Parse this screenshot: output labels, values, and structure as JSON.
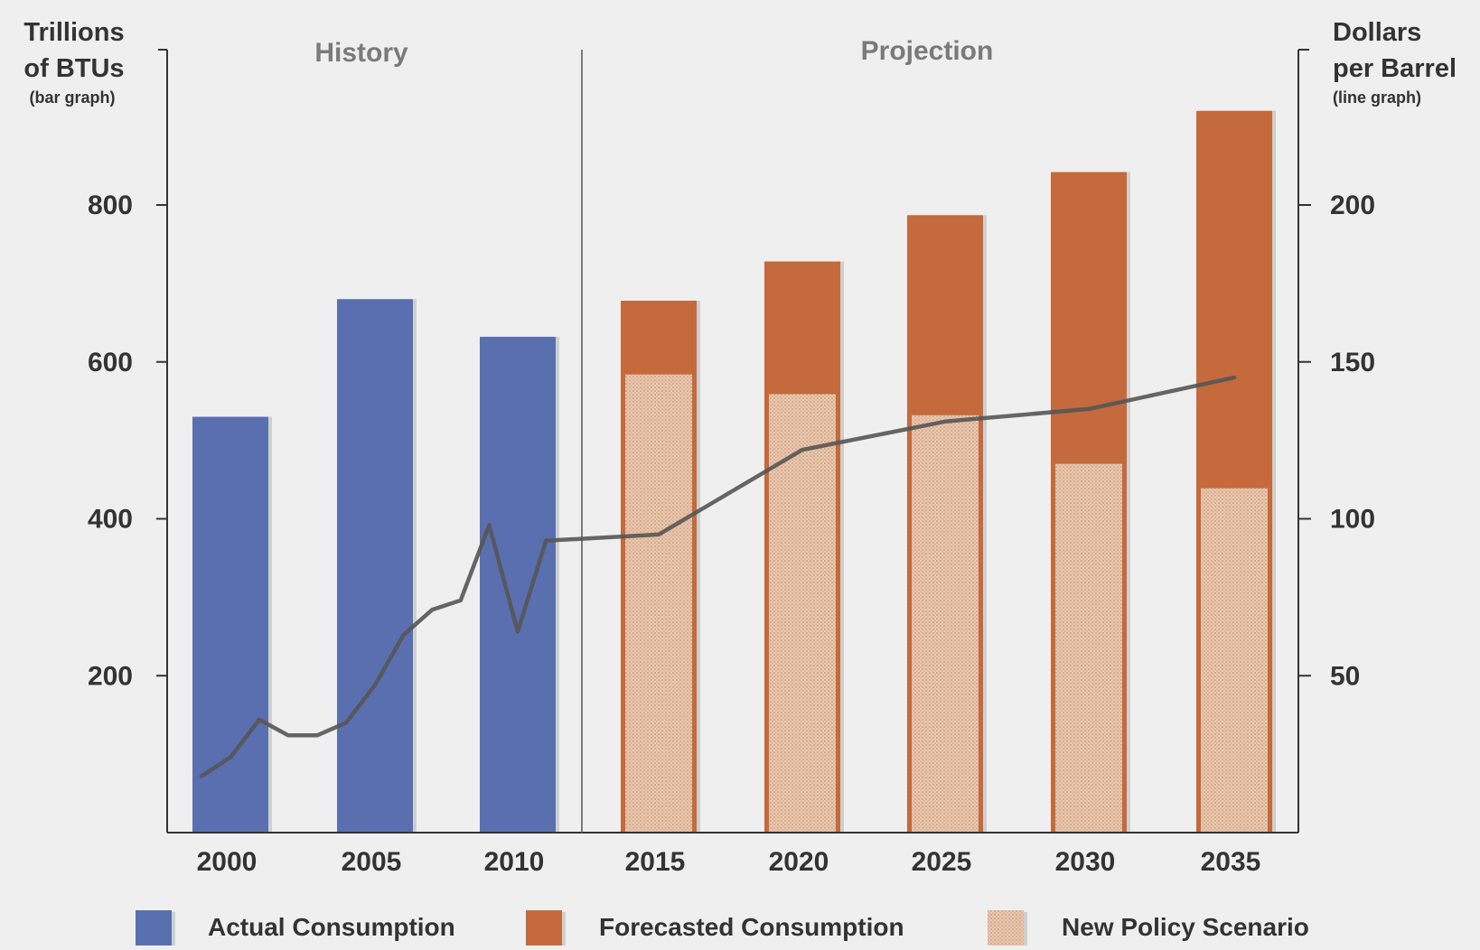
{
  "chart_data": {
    "type": "bar",
    "sections": {
      "history": "History",
      "projection": "Projection"
    },
    "left_axis": {
      "title_line1": "Trillions",
      "title_line2": "of BTUs",
      "title_note": "(bar graph)",
      "range": [
        0,
        1000
      ],
      "ticks": [
        "200",
        "400",
        "600",
        "800"
      ],
      "tick_values": [
        200,
        400,
        600,
        800
      ]
    },
    "right_axis": {
      "title_line1": "Dollars",
      "title_line2": "per Barrel",
      "title_note": "(line graph)",
      "range": [
        0,
        250
      ],
      "ticks": [
        "50",
        "100",
        "150",
        "200"
      ],
      "tick_values": [
        50,
        100,
        150,
        200
      ]
    },
    "categories": [
      "2000",
      "2005",
      "2010",
      "2015",
      "2020",
      "2025",
      "2030",
      "2035"
    ],
    "series": [
      {
        "name": "Actual Consumption",
        "color": "#5a6fb0",
        "values": [
          530,
          680,
          632,
          null,
          null,
          null,
          null,
          null
        ]
      },
      {
        "name": "Forecasted Consumption",
        "color": "#c46a3c",
        "values": [
          null,
          null,
          null,
          678,
          728,
          787,
          842,
          920
        ]
      },
      {
        "name": "New Policy Scenario",
        "color": "#e5c1a8",
        "pattern": "stipple",
        "values": [
          null,
          null,
          null,
          584,
          559,
          532,
          470,
          439
        ]
      }
    ],
    "price_line": {
      "color": "#555555",
      "x": [
        1999,
        2000,
        2001,
        2002,
        2003,
        2004,
        2005,
        2006,
        2007,
        2008,
        2009,
        2010,
        2011,
        2015,
        2020,
        2025,
        2030,
        2035
      ],
      "y": [
        18,
        24,
        36,
        31,
        31,
        35,
        47,
        63,
        71,
        74,
        98,
        64,
        93,
        95,
        122,
        131,
        135,
        145
      ]
    },
    "legend": [
      {
        "label": "Actual Consumption",
        "color": "#5a6fb0",
        "pattern": "solid"
      },
      {
        "label": "Forecasted Consumption",
        "color": "#c46a3c",
        "pattern": "solid"
      },
      {
        "label": "New Policy Scenario",
        "color": "#e5c1a8",
        "pattern": "stipple"
      }
    ],
    "legend_position": "bottom"
  }
}
